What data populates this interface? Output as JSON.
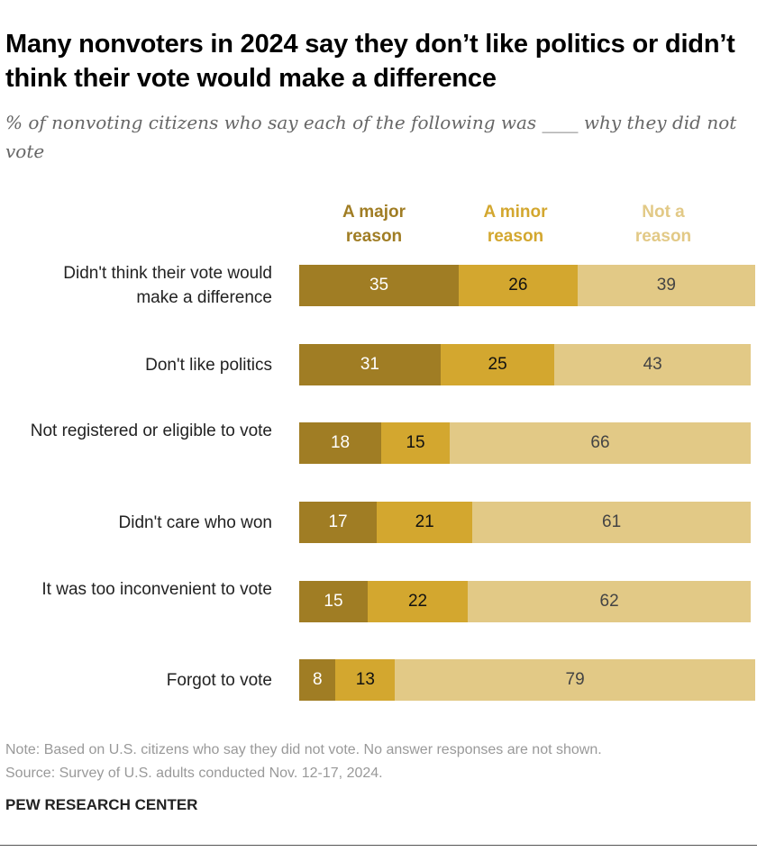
{
  "chart_data": {
    "type": "bar",
    "orientation": "horizontal-stacked",
    "title": "Many nonvoters in 2024 say they don’t like politics or didn’t think their vote would make a difference",
    "subtitle": "% of nonvoting citizens who say each of the following was ____ why they did not vote",
    "categories": [
      "Didn't think their vote would make a difference",
      "Don't like politics",
      "Not registered or eligible to vote",
      "Didn't care who won",
      "It was too inconvenient to vote",
      "Forgot to vote"
    ],
    "series": [
      {
        "name": "A major reason",
        "color": "#A07D24",
        "values": [
          35,
          31,
          18,
          17,
          15,
          8
        ]
      },
      {
        "name": "A minor reason",
        "color": "#D3A72F",
        "values": [
          26,
          25,
          15,
          21,
          22,
          13
        ]
      },
      {
        "name": "Not a reason",
        "color": "#E2C986",
        "values": [
          39,
          43,
          66,
          61,
          62,
          79
        ]
      }
    ],
    "xlim": [
      0,
      100
    ],
    "legend": "top",
    "grid": false
  },
  "note": "Note: Based on U.S. citizens who say they did not vote. No answer responses are not shown.",
  "source": "Source: Survey of U.S. adults conducted Nov. 12-17, 2024.",
  "brand": "PEW RESEARCH CENTER"
}
